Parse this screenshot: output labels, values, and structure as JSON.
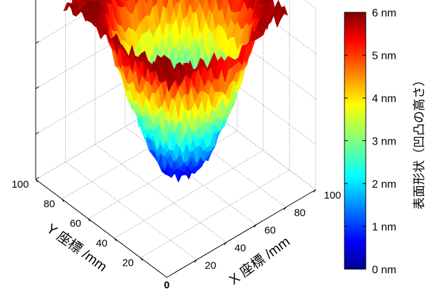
{
  "chart_data": {
    "type": "surface3d",
    "description_free": true,
    "x_axis": {
      "label": "X 座標 /mm",
      "ticks": [
        "20",
        "40",
        "60",
        "80",
        "100"
      ],
      "range": [
        0,
        100
      ]
    },
    "y_axis": {
      "label": "Y 座標 /mm",
      "ticks": [
        "20",
        "40",
        "60",
        "80",
        "100"
      ],
      "range": [
        0,
        100
      ]
    },
    "origin_label": "0",
    "z_axis": {
      "label": "",
      "range": [
        0,
        6
      ],
      "tick_count": 5
    },
    "colorbar": {
      "label": "表面形状（凹凸の高さ）",
      "ticks": [
        "0 nm",
        "1 nm",
        "2 nm",
        "3 nm",
        "4 nm",
        "5 nm",
        "6 nm"
      ],
      "colormap": "jet",
      "range": [
        0,
        6
      ]
    },
    "surface": {
      "shape": "bowl",
      "center_height_nm": 0.3,
      "edge_height_nm": 5.8,
      "xy_extent_mm": [
        10,
        90
      ]
    },
    "grid": true
  }
}
